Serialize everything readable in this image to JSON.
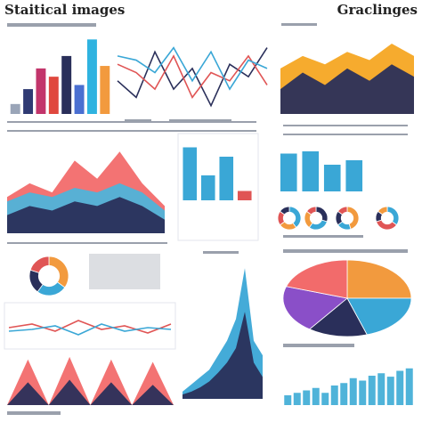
{
  "header": {
    "title": "Staitical images",
    "subtitle": "Graclinges"
  },
  "chart_data": [
    {
      "type": "bar",
      "ylim": [
        0,
        100
      ],
      "values": [
        12,
        30,
        55,
        45,
        70,
        35,
        90,
        58
      ],
      "colors": [
        "#9aa5b8",
        "#2f3a73",
        "#c2356b",
        "#e0483e",
        "#2a2f5a",
        "#4a6fd1",
        "#2fb3e0",
        "#f29a3e"
      ]
    },
    {
      "type": "line",
      "ylim": [
        0,
        100
      ],
      "series": [
        {
          "color": "#2a2f5a",
          "values": [
            40,
            20,
            75,
            30,
            55,
            10,
            60,
            45,
            80
          ]
        },
        {
          "color": "#e05555",
          "values": [
            60,
            50,
            30,
            70,
            20,
            50,
            40,
            70,
            35
          ]
        },
        {
          "color": "#3aa7d6",
          "values": [
            70,
            65,
            50,
            80,
            40,
            75,
            30,
            65,
            55
          ]
        }
      ]
    },
    {
      "type": "area",
      "ylim": [
        0,
        100
      ],
      "series": [
        {
          "color": "#f5a623",
          "values": [
            55,
            70,
            60,
            75,
            65,
            85,
            70
          ]
        },
        {
          "color": "#2a2f5a",
          "values": [
            30,
            50,
            35,
            55,
            40,
            60,
            45
          ]
        }
      ]
    },
    {
      "type": "area",
      "ylim": [
        0,
        100
      ],
      "series": [
        {
          "color": "#f26b6b",
          "values": [
            40,
            55,
            45,
            80,
            60,
            90,
            55,
            30
          ]
        },
        {
          "color": "#4fb3d9",
          "values": [
            35,
            45,
            40,
            50,
            45,
            55,
            45,
            25
          ]
        },
        {
          "color": "#2a2f5a",
          "values": [
            20,
            30,
            25,
            35,
            30,
            40,
            30,
            15
          ]
        }
      ]
    },
    {
      "type": "bar",
      "ylim": [
        0,
        100
      ],
      "values": [
        85,
        40,
        70,
        15
      ],
      "colors": [
        "#3aa7d6",
        "#3aa7d6",
        "#3aa7d6",
        "#e05555"
      ]
    },
    {
      "type": "bar",
      "ylim": [
        0,
        100
      ],
      "values": [
        85,
        90,
        60,
        70
      ],
      "colors": [
        "#3aa7d6",
        "#3aa7d6",
        "#3aa7d6",
        "#3aa7d6"
      ]
    },
    {
      "type": "pie",
      "donut": true,
      "values": [
        40,
        25,
        20,
        15
      ],
      "colors": [
        "#3aa7d6",
        "#f29a3e",
        "#e05555",
        "#2a2f5a"
      ]
    },
    {
      "type": "pie",
      "donut": true,
      "values": [
        30,
        30,
        25,
        15
      ],
      "colors": [
        "#2a2f5a",
        "#3aa7d6",
        "#f29a3e",
        "#e05555"
      ]
    },
    {
      "type": "pie",
      "donut": true,
      "values": [
        45,
        20,
        20,
        15
      ],
      "colors": [
        "#f29a3e",
        "#3aa7d6",
        "#2a2f5a",
        "#e05555"
      ]
    },
    {
      "type": "pie",
      "donut": true,
      "values": [
        35,
        35,
        15,
        15
      ],
      "colors": [
        "#3aa7d6",
        "#e05555",
        "#2a2f5a",
        "#f29a3e"
      ]
    },
    {
      "type": "pie",
      "donut": true,
      "values": [
        35,
        25,
        20,
        20
      ],
      "colors": [
        "#f29a3e",
        "#3aa7d6",
        "#2a2f5a",
        "#e05555"
      ]
    },
    {
      "type": "line",
      "ylim": [
        0,
        100
      ],
      "series": [
        {
          "color": "#e05555",
          "values": [
            50,
            60,
            40,
            70,
            45,
            55,
            35,
            60
          ]
        },
        {
          "color": "#3aa7d6",
          "values": [
            40,
            45,
            55,
            30,
            60,
            40,
            50,
            45
          ]
        }
      ]
    },
    {
      "type": "area",
      "ylim": [
        0,
        100
      ],
      "series": [
        {
          "color": "#f26b6b",
          "values": [
            0,
            90,
            0,
            95,
            0,
            90,
            0,
            85,
            0
          ]
        },
        {
          "color": "#2a2f5a",
          "values": [
            0,
            45,
            0,
            50,
            0,
            45,
            0,
            40,
            0
          ]
        }
      ]
    },
    {
      "type": "area",
      "ylim": [
        0,
        100
      ],
      "series": [
        {
          "color": "#3aa7d6",
          "values": [
            5,
            10,
            15,
            20,
            30,
            40,
            55,
            90,
            40,
            30
          ]
        },
        {
          "color": "#2a2f5a",
          "values": [
            3,
            5,
            8,
            12,
            18,
            25,
            35,
            60,
            25,
            15
          ]
        }
      ]
    },
    {
      "type": "pie",
      "values": [
        25,
        20,
        15,
        20,
        20
      ],
      "colors": [
        "#f29a3e",
        "#3aa7d6",
        "#2a2f5a",
        "#8a4fc8",
        "#f26b6b"
      ]
    },
    {
      "type": "bar",
      "ylim": [
        0,
        100
      ],
      "values": [
        20,
        25,
        30,
        35,
        25,
        40,
        45,
        55,
        50,
        60,
        65,
        58,
        70,
        75
      ],
      "colors": [
        "#4fb3d9",
        "#4fb3d9",
        "#4fb3d9",
        "#4fb3d9",
        "#4fb3d9",
        "#4fb3d9",
        "#4fb3d9",
        "#4fb3d9",
        "#4fb3d9",
        "#4fb3d9",
        "#4fb3d9",
        "#4fb3d9",
        "#4fb3d9",
        "#4fb3d9"
      ]
    }
  ]
}
